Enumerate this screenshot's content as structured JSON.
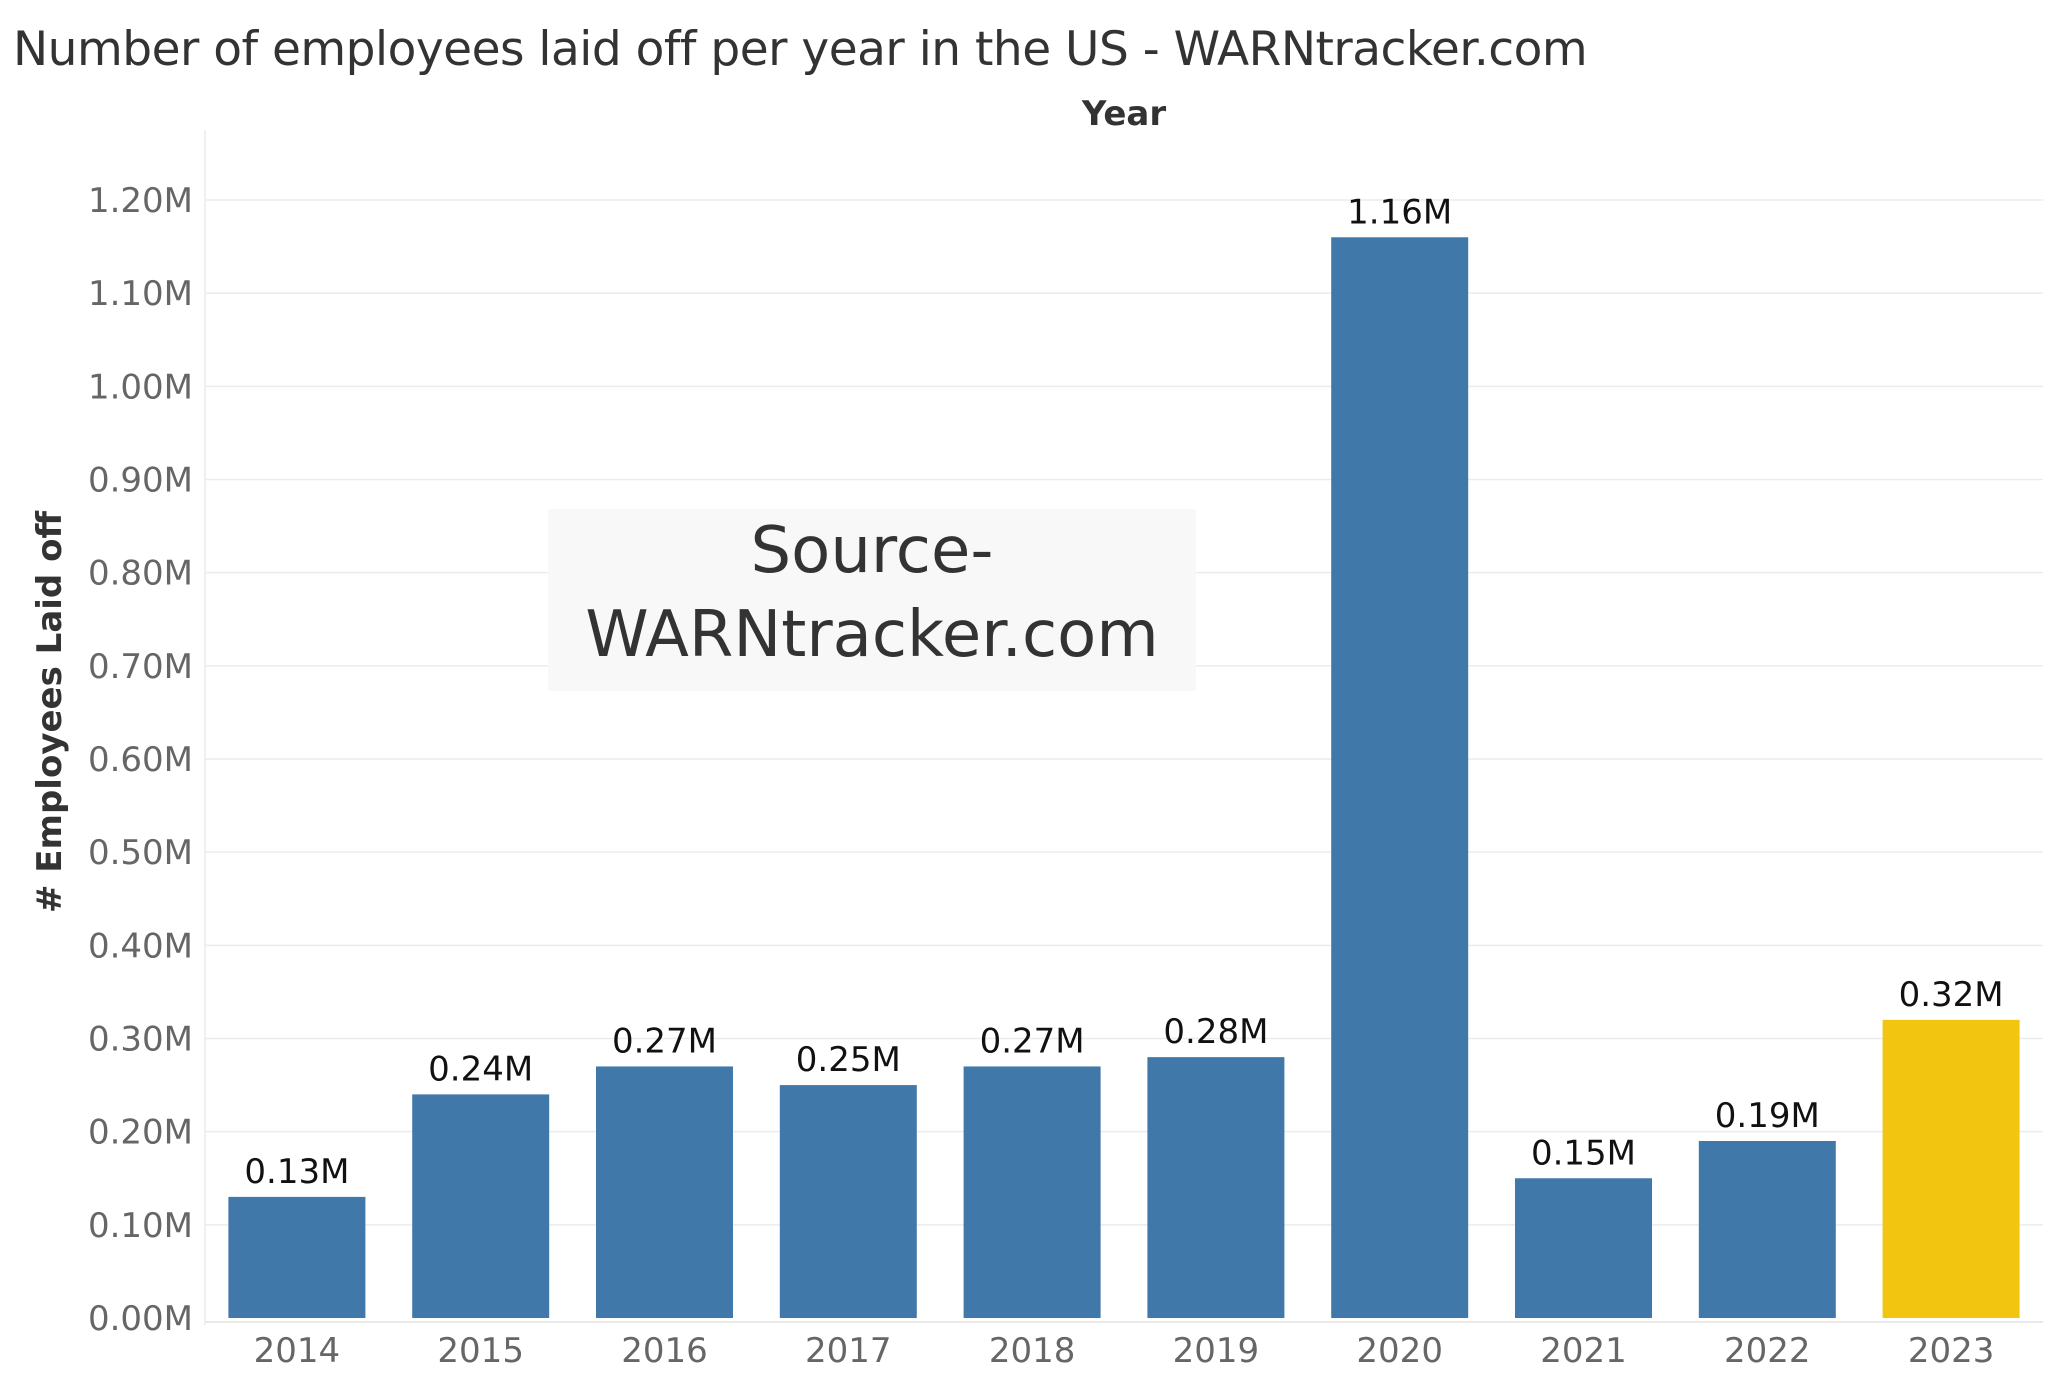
{
  "chart_data": {
    "type": "bar",
    "title": "Number of employees laid off per year in the US - WARNtracker.com",
    "xlabel": "Year",
    "ylabel": "# Employees Laid off",
    "categories": [
      "2014",
      "2015",
      "2016",
      "2017",
      "2018",
      "2019",
      "2020",
      "2021",
      "2022",
      "2023"
    ],
    "values": [
      0.13,
      0.24,
      0.27,
      0.25,
      0.27,
      0.28,
      1.16,
      0.15,
      0.19,
      0.32
    ],
    "value_labels": [
      "0.13M",
      "0.24M",
      "0.27M",
      "0.25M",
      "0.27M",
      "0.28M",
      "1.16M",
      "0.15M",
      "0.19M",
      "0.32M"
    ],
    "unit": "M",
    "ylim": [
      0,
      1.2
    ],
    "yticks": [
      0.0,
      0.1,
      0.2,
      0.3,
      0.4,
      0.5,
      0.6,
      0.7,
      0.8,
      0.9,
      1.0,
      1.1,
      1.2
    ],
    "ytick_labels": [
      "0.00M",
      "0.10M",
      "0.20M",
      "0.30M",
      "0.40M",
      "0.50M",
      "0.60M",
      "0.70M",
      "0.80M",
      "0.90M",
      "1.00M",
      "1.10M",
      "1.20M"
    ],
    "grid": true,
    "legend": "none",
    "colors": {
      "default_bar": "#4079a9",
      "highlight_bar": "#f2c511",
      "highlight_category": "2023",
      "gridline": "#ececec"
    },
    "annotation": {
      "line1": "Source-",
      "line2": "WARNtracker.com"
    }
  }
}
